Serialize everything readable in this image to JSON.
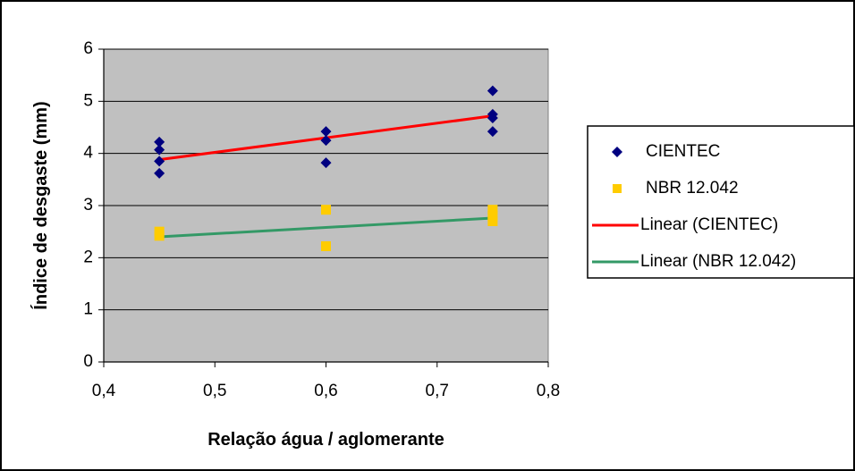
{
  "chart_data": {
    "type": "scatter",
    "xlabel": "Relação água / aglomerante",
    "ylabel": "Índice de desgaste (mm)",
    "xlim": [
      0.4,
      0.8
    ],
    "ylim": [
      0,
      6
    ],
    "x_ticks": [
      "0,4",
      "0,5",
      "0,6",
      "0,7",
      "0,8"
    ],
    "y_ticks": [
      "0",
      "1",
      "2",
      "3",
      "4",
      "5",
      "6"
    ],
    "x_tick_values": [
      0.4,
      0.5,
      0.6,
      0.7,
      0.8
    ],
    "y_tick_values": [
      0,
      1,
      2,
      3,
      4,
      5,
      6
    ],
    "grid": "horizontal",
    "plot_background": "#c0c0c0",
    "legend_position": "right",
    "series": [
      {
        "name": "CIENTEC",
        "marker": "diamond",
        "color": "#000080",
        "points": [
          {
            "x": 0.45,
            "y": 4.22
          },
          {
            "x": 0.45,
            "y": 4.07
          },
          {
            "x": 0.45,
            "y": 3.85
          },
          {
            "x": 0.45,
            "y": 3.62
          },
          {
            "x": 0.6,
            "y": 4.42
          },
          {
            "x": 0.6,
            "y": 4.25
          },
          {
            "x": 0.6,
            "y": 3.82
          },
          {
            "x": 0.75,
            "y": 5.2
          },
          {
            "x": 0.75,
            "y": 4.75
          },
          {
            "x": 0.75,
            "y": 4.68
          },
          {
            "x": 0.75,
            "y": 4.42
          }
        ]
      },
      {
        "name": "NBR 12.042",
        "marker": "square",
        "color": "#ffcc00",
        "points": [
          {
            "x": 0.45,
            "y": 2.5
          },
          {
            "x": 0.45,
            "y": 2.42
          },
          {
            "x": 0.6,
            "y": 2.92
          },
          {
            "x": 0.6,
            "y": 2.22
          },
          {
            "x": 0.75,
            "y": 2.92
          },
          {
            "x": 0.75,
            "y": 2.8
          },
          {
            "x": 0.75,
            "y": 2.7
          }
        ]
      }
    ],
    "trendlines": [
      {
        "name": "Linear (CIENTEC)",
        "color": "#ff0000",
        "x": [
          0.45,
          0.75
        ],
        "y": [
          3.88,
          4.72
        ]
      },
      {
        "name": "Linear (NBR 12.042)",
        "color": "#339966",
        "x": [
          0.45,
          0.75
        ],
        "y": [
          2.4,
          2.76
        ]
      }
    ]
  }
}
